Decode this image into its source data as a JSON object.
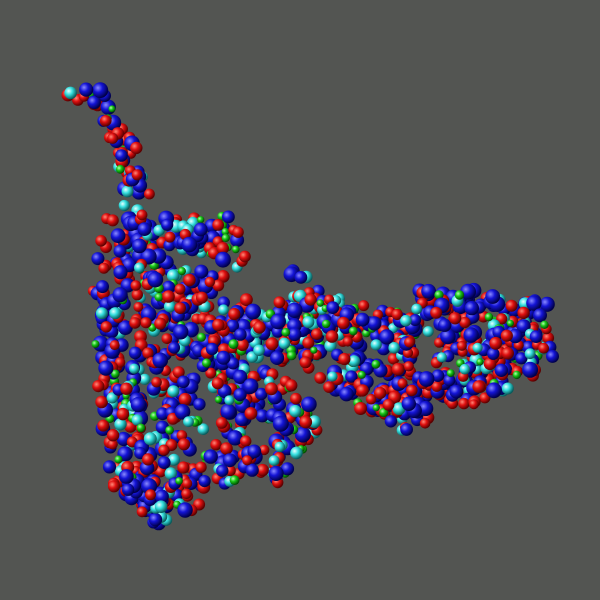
{
  "scene": {
    "background_color": "#535552",
    "representation": "ball-and-stick",
    "atom_colors": {
      "oxygen": "#e01010",
      "nitrogen": "#1414d6",
      "carbon": "#36e0e0",
      "phosphorus": "#18c818"
    }
  }
}
